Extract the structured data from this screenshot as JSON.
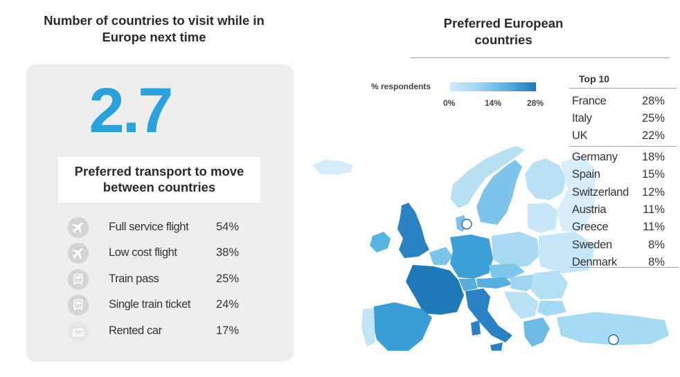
{
  "left": {
    "title": "Number of countries to visit while in Europe next time",
    "big_number": "2.7",
    "transport_title": "Preferred transport to move between countries",
    "transport": [
      {
        "label": "Full service flight",
        "value": "54%",
        "icon": "airplane-icon"
      },
      {
        "label": "Low cost flight",
        "value": "38%",
        "icon": "airplane-icon"
      },
      {
        "label": "Train pass",
        "value": "25%",
        "icon": "train-icon"
      },
      {
        "label": "Single train ticket",
        "value": "24%",
        "icon": "train-icon"
      },
      {
        "label": "Rented car",
        "value": "17%",
        "icon": "car-icon"
      }
    ]
  },
  "right": {
    "title": "Preferred European countries",
    "legend": {
      "label": "% respondents",
      "ticks": [
        "0%",
        "14%",
        "28%"
      ],
      "colors": [
        "#d0ebf9",
        "#9fd5f2",
        "#56afdf",
        "#1f79b8"
      ]
    },
    "top10_header": "Top 10",
    "top10": [
      {
        "country": "France",
        "pct": "28%"
      },
      {
        "country": "Italy",
        "pct": "25%"
      },
      {
        "country": "UK",
        "pct": "22%"
      },
      {
        "country": "Germany",
        "pct": "18%"
      },
      {
        "country": "Spain",
        "pct": "15%"
      },
      {
        "country": "Switzerland",
        "pct": "12%"
      },
      {
        "country": "Austria",
        "pct": "11%"
      },
      {
        "country": "Greece",
        "pct": "11%"
      },
      {
        "country": "Sweden",
        "pct": "8%"
      },
      {
        "country": "Denmark",
        "pct": "8%"
      }
    ]
  }
}
